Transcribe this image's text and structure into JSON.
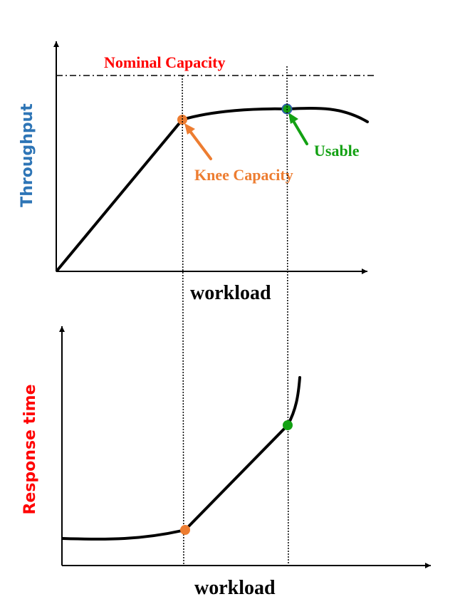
{
  "top_chart": {
    "y_label": "Throughput",
    "x_label": "workload",
    "nominal_label": "Nominal Capacity",
    "knee_label": "Knee Capacity",
    "usable_label": "Usable"
  },
  "bottom_chart": {
    "y_label": "Response time",
    "x_label": "workload"
  },
  "colors": {
    "axis": "#000000",
    "curve": "#000000",
    "knee": "#ED7D31",
    "usable": "#13A113",
    "usable_outline": "#2E5FA8",
    "nominal_text": "#FF0000",
    "throughput_label": "#2E75B6",
    "response_label": "#FF0000"
  }
}
